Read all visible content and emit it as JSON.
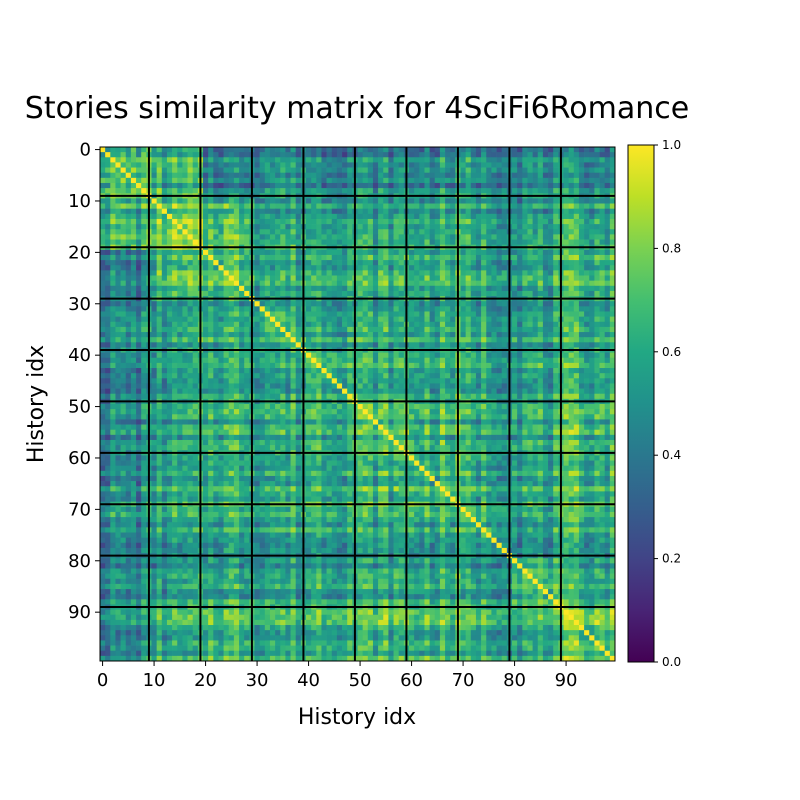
{
  "chart_data": {
    "type": "heatmap",
    "title": "Stories similarity matrix for 4SciFi6Romance",
    "xlabel": "History idx",
    "ylabel": "History idx",
    "n": 100,
    "block_size": 10,
    "x_ticks": [
      0,
      10,
      20,
      30,
      40,
      50,
      60,
      70,
      80,
      90
    ],
    "y_ticks": [
      0,
      10,
      20,
      30,
      40,
      50,
      60,
      70,
      80,
      90
    ],
    "x_tick_labels": [
      "0",
      "10",
      "20",
      "30",
      "40",
      "50",
      "60",
      "70",
      "80",
      "90"
    ],
    "y_tick_labels": [
      "0",
      "10",
      "20",
      "30",
      "40",
      "50",
      "60",
      "70",
      "80",
      "90"
    ],
    "colormap": "viridis",
    "vmin": 0.0,
    "vmax": 1.0,
    "colorbar_ticks": [
      0.0,
      0.2,
      0.4,
      0.6,
      0.8,
      1.0
    ],
    "colorbar_tick_labels": [
      "0.0",
      "0.2",
      "0.4",
      "0.6",
      "0.8",
      "1.0"
    ],
    "diagonal_value": 1.0,
    "block_mean_similarity": [
      [
        0.7,
        0.62,
        0.45,
        0.5,
        0.47,
        0.46,
        0.48,
        0.5,
        0.47,
        0.46
      ],
      [
        0.62,
        0.72,
        0.68,
        0.55,
        0.56,
        0.54,
        0.57,
        0.55,
        0.52,
        0.58
      ],
      [
        0.45,
        0.68,
        0.72,
        0.62,
        0.66,
        0.64,
        0.65,
        0.62,
        0.58,
        0.68
      ],
      [
        0.5,
        0.55,
        0.62,
        0.66,
        0.62,
        0.6,
        0.61,
        0.6,
        0.56,
        0.62
      ],
      [
        0.47,
        0.56,
        0.66,
        0.62,
        0.72,
        0.66,
        0.65,
        0.62,
        0.6,
        0.66
      ],
      [
        0.46,
        0.54,
        0.64,
        0.6,
        0.66,
        0.68,
        0.64,
        0.62,
        0.58,
        0.66
      ],
      [
        0.48,
        0.57,
        0.65,
        0.61,
        0.65,
        0.64,
        0.68,
        0.62,
        0.6,
        0.64
      ],
      [
        0.5,
        0.55,
        0.62,
        0.6,
        0.62,
        0.62,
        0.62,
        0.64,
        0.56,
        0.63
      ],
      [
        0.47,
        0.52,
        0.58,
        0.56,
        0.6,
        0.58,
        0.6,
        0.56,
        0.64,
        0.6
      ],
      [
        0.46,
        0.58,
        0.68,
        0.62,
        0.66,
        0.66,
        0.64,
        0.63,
        0.6,
        0.74
      ]
    ]
  }
}
